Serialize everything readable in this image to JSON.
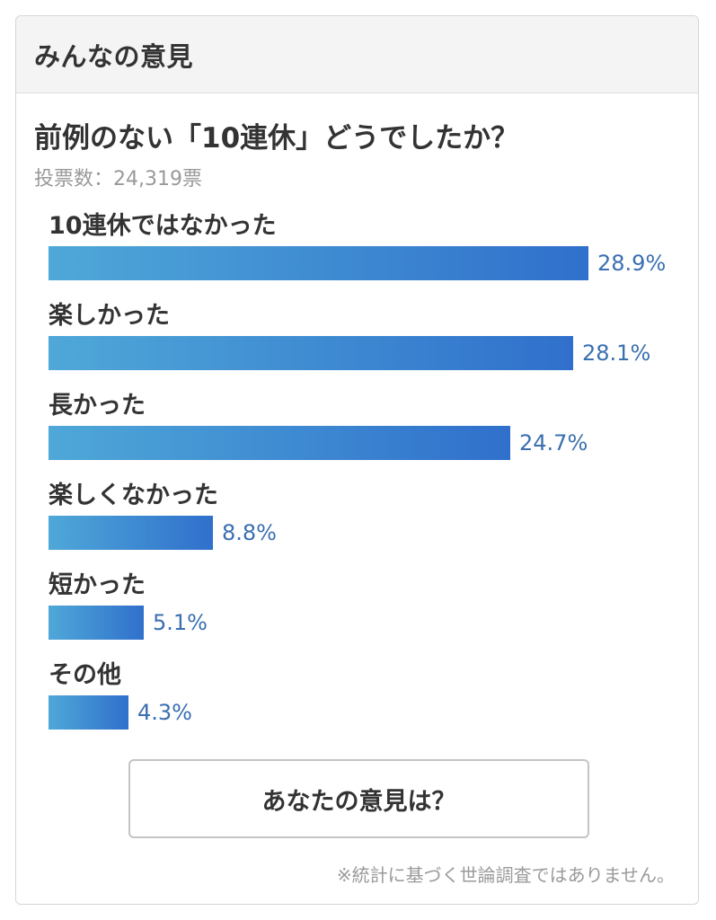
{
  "header": {
    "title": "みんなの意見"
  },
  "poll": {
    "question": "前例のない「10連休」どうでしたか？",
    "votes_label": "投票数：24,319票",
    "options": [
      {
        "label": "10連休ではなかった",
        "percent_text": "28.9%",
        "percent": 28.9
      },
      {
        "label": "楽しかった",
        "percent_text": "28.1%",
        "percent": 28.1
      },
      {
        "label": "長かった",
        "percent_text": "24.7%",
        "percent": 24.7
      },
      {
        "label": "楽しくなかった",
        "percent_text": "8.8%",
        "percent": 8.8
      },
      {
        "label": "短かった",
        "percent_text": "5.1%",
        "percent": 5.1
      },
      {
        "label": "その他",
        "percent_text": "4.3%",
        "percent": 4.3
      }
    ]
  },
  "action": {
    "button_label": "あなたの意見は？"
  },
  "footer": {
    "disclaimer": "※統計に基づく世論調査ではありません。"
  },
  "colors": {
    "bar_gradient_start": "#4fa8d8",
    "bar_gradient_end": "#3070cc",
    "value_text": "#3a6fb0"
  }
}
